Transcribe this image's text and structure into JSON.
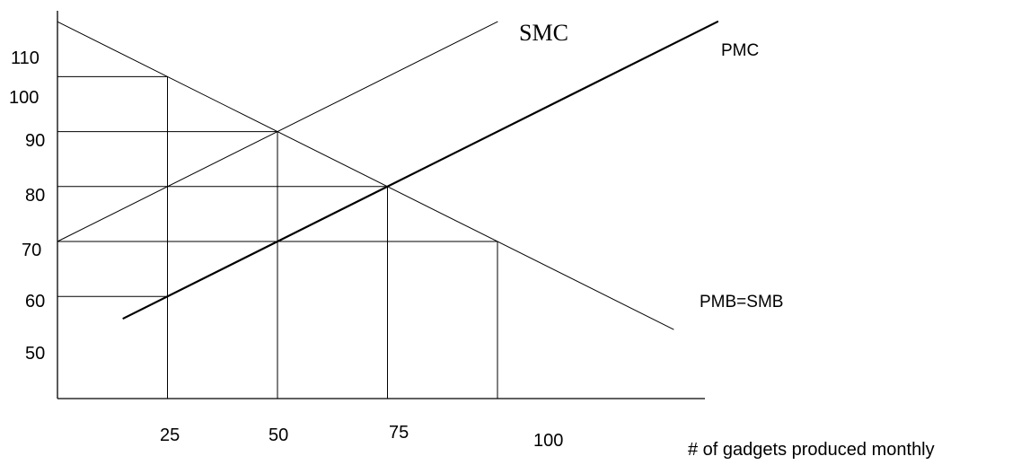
{
  "chart_data": {
    "type": "line",
    "xlabel": "# of gadgets produced monthly",
    "ylabel": "",
    "x_ticks": [
      25,
      50,
      75,
      100
    ],
    "y_ticks": [
      50,
      60,
      70,
      80,
      90,
      100,
      110
    ],
    "series": [
      {
        "name": "SMC",
        "x": [
          0,
          100
        ],
        "y": [
          70,
          110
        ]
      },
      {
        "name": "PMC",
        "x": [
          15,
          150
        ],
        "y": [
          56,
          110
        ]
      },
      {
        "name": "PMB=SMB",
        "x": [
          0,
          140
        ],
        "y": [
          110,
          54
        ]
      }
    ],
    "guides": [
      {
        "x": 25,
        "y": 100
      },
      {
        "x": 25,
        "y": 60
      },
      {
        "x": 50,
        "y": 90
      },
      {
        "x": 75,
        "y": 80
      },
      {
        "x": 100,
        "y": 70
      }
    ],
    "grid": false,
    "legend": "none"
  }
}
